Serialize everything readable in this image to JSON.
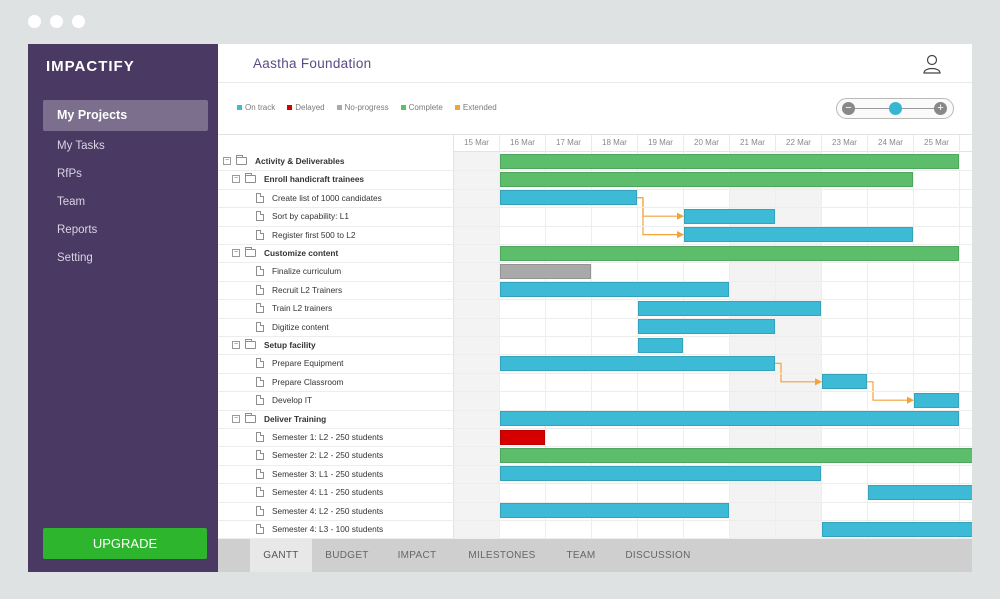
{
  "org_name": "Aastha Foundation",
  "logo_text": "IMPACTIFY",
  "sidebar": {
    "items": [
      {
        "label": "My Projects",
        "active": true
      },
      {
        "label": "My Tasks"
      },
      {
        "label": "RfPs"
      },
      {
        "label": "Team"
      },
      {
        "label": "Reports"
      },
      {
        "label": "Setting"
      }
    ],
    "upgrade_label": "UPGRADE"
  },
  "legend": [
    {
      "label": "On track",
      "color": "#3dbad6"
    },
    {
      "label": "Delayed",
      "color": "#d60000"
    },
    {
      "label": "No-progress",
      "color": "#a9a9a9"
    },
    {
      "label": "Complete",
      "color": "#5cbd6b"
    },
    {
      "label": "Extended",
      "color": "#f2a33a"
    }
  ],
  "dates": [
    "15 Mar",
    "16 Mar",
    "17 Mar",
    "18 Mar",
    "19 Mar",
    "20 Mar",
    "21 Mar",
    "22 Mar",
    "23 Mar",
    "24 Mar",
    "25 Mar"
  ],
  "tasks": [
    {
      "label": "Activity & Deliverables",
      "level": 0,
      "type": "group",
      "bar": {
        "start": "16 Mar",
        "end": "26 Mar",
        "status": "complete"
      }
    },
    {
      "label": "Enroll handicraft trainees",
      "level": 1,
      "type": "group",
      "bar": {
        "start": "16 Mar",
        "end": "25 Mar",
        "status": "complete"
      }
    },
    {
      "label": "Create list of 1000 candidates",
      "level": 2,
      "type": "task",
      "bar": {
        "start": "16 Mar",
        "end": "19 Mar",
        "status": "on-track"
      }
    },
    {
      "label": "Sort by capability: L1",
      "level": 2,
      "type": "task",
      "bar": {
        "start": "20 Mar",
        "end": "22 Mar",
        "status": "on-track"
      }
    },
    {
      "label": "Register first 500 to L2",
      "level": 2,
      "type": "task",
      "bar": {
        "start": "20 Mar",
        "end": "25 Mar",
        "status": "on-track"
      }
    },
    {
      "label": "Customize content",
      "level": 1,
      "type": "group",
      "bar": {
        "start": "16 Mar",
        "end": "26 Mar",
        "status": "complete"
      }
    },
    {
      "label": "Finalize curriculum",
      "level": 2,
      "type": "task",
      "bar": {
        "start": "16 Mar",
        "end": "18 Mar",
        "status": "no-progress"
      }
    },
    {
      "label": "Recruit L2 Trainers",
      "level": 2,
      "type": "task",
      "bar": {
        "start": "16 Mar",
        "end": "21 Mar",
        "status": "on-track"
      }
    },
    {
      "label": "Train L2 trainers",
      "level": 2,
      "type": "task",
      "bar": {
        "start": "19 Mar",
        "end": "23 Mar",
        "status": "on-track"
      }
    },
    {
      "label": "Digitize content",
      "level": 2,
      "type": "task",
      "bar": {
        "start": "19 Mar",
        "end": "22 Mar",
        "status": "on-track"
      }
    },
    {
      "label": "Setup facility",
      "level": 1,
      "type": "group",
      "bar": {
        "start": "19 Mar",
        "end": "20 Mar",
        "status": "on-track"
      }
    },
    {
      "label": "Prepare Equipment",
      "level": 2,
      "type": "task",
      "bar": {
        "start": "16 Mar",
        "end": "22 Mar",
        "status": "on-track"
      }
    },
    {
      "label": "Prepare Classroom",
      "level": 2,
      "type": "task",
      "bar": {
        "start": "23 Mar",
        "end": "24 Mar",
        "status": "on-track"
      }
    },
    {
      "label": "Develop IT",
      "level": 2,
      "type": "task",
      "bar": {
        "start": "25 Mar",
        "end": "26 Mar",
        "status": "on-track"
      }
    },
    {
      "label": "Deliver Training",
      "level": 1,
      "type": "group",
      "bar": {
        "start": "16 Mar",
        "end": "26 Mar",
        "status": "on-track"
      }
    },
    {
      "label": "Semester 1: L2 - 250 students",
      "level": 2,
      "type": "task",
      "bar": {
        "start": "16 Mar",
        "end": "17 Mar",
        "status": "delayed"
      }
    },
    {
      "label": "Semester 2: L2 - 250 students",
      "level": 2,
      "type": "task",
      "bar": {
        "start": "16 Mar",
        "end": "27 Mar",
        "status": "complete"
      }
    },
    {
      "label": "Semester 3: L1 - 250 students",
      "level": 2,
      "type": "task",
      "bar": {
        "start": "16 Mar",
        "end": "23 Mar",
        "status": "on-track"
      }
    },
    {
      "label": "Semester 4: L1 - 250 students",
      "level": 2,
      "type": "task",
      "bar": {
        "start": "24 Mar",
        "end": "27 Mar",
        "status": "on-track"
      }
    },
    {
      "label": "Semester 4: L2 - 250 students",
      "level": 2,
      "type": "task",
      "bar": {
        "start": "16 Mar",
        "end": "21 Mar",
        "status": "on-track"
      }
    },
    {
      "label": "Semester 4: L3 - 100 students",
      "level": 2,
      "type": "task",
      "bar": {
        "start": "23 Mar",
        "end": "27 Mar",
        "status": "on-track"
      }
    }
  ],
  "dependencies": [
    {
      "from": "Create list of 1000 candidates",
      "to": "Sort by capability: L1"
    },
    {
      "from": "Create list of 1000 candidates",
      "to": "Register first 500 to L2"
    },
    {
      "from": "Prepare Equipment",
      "to": "Prepare Classroom"
    },
    {
      "from": "Prepare Classroom",
      "to": "Develop IT"
    }
  ],
  "tabs": [
    {
      "label": "GANTT",
      "active": true
    },
    {
      "label": "BUDGET"
    },
    {
      "label": "IMPACT"
    },
    {
      "label": "MILESTONES"
    },
    {
      "label": "TEAM"
    },
    {
      "label": "DISCUSSION"
    }
  ],
  "colors": {
    "complete": "#5cbd6b",
    "on-track": "#3dbad6",
    "delayed": "#d60000",
    "no-progress": "#a9a9a9",
    "extended": "#f2a33a",
    "sidebar": "#4a3a63",
    "accent": "#5c4a86"
  },
  "icons": {
    "user": "user-icon",
    "minus": "zoom-out-icon",
    "plus": "zoom-in-icon"
  }
}
